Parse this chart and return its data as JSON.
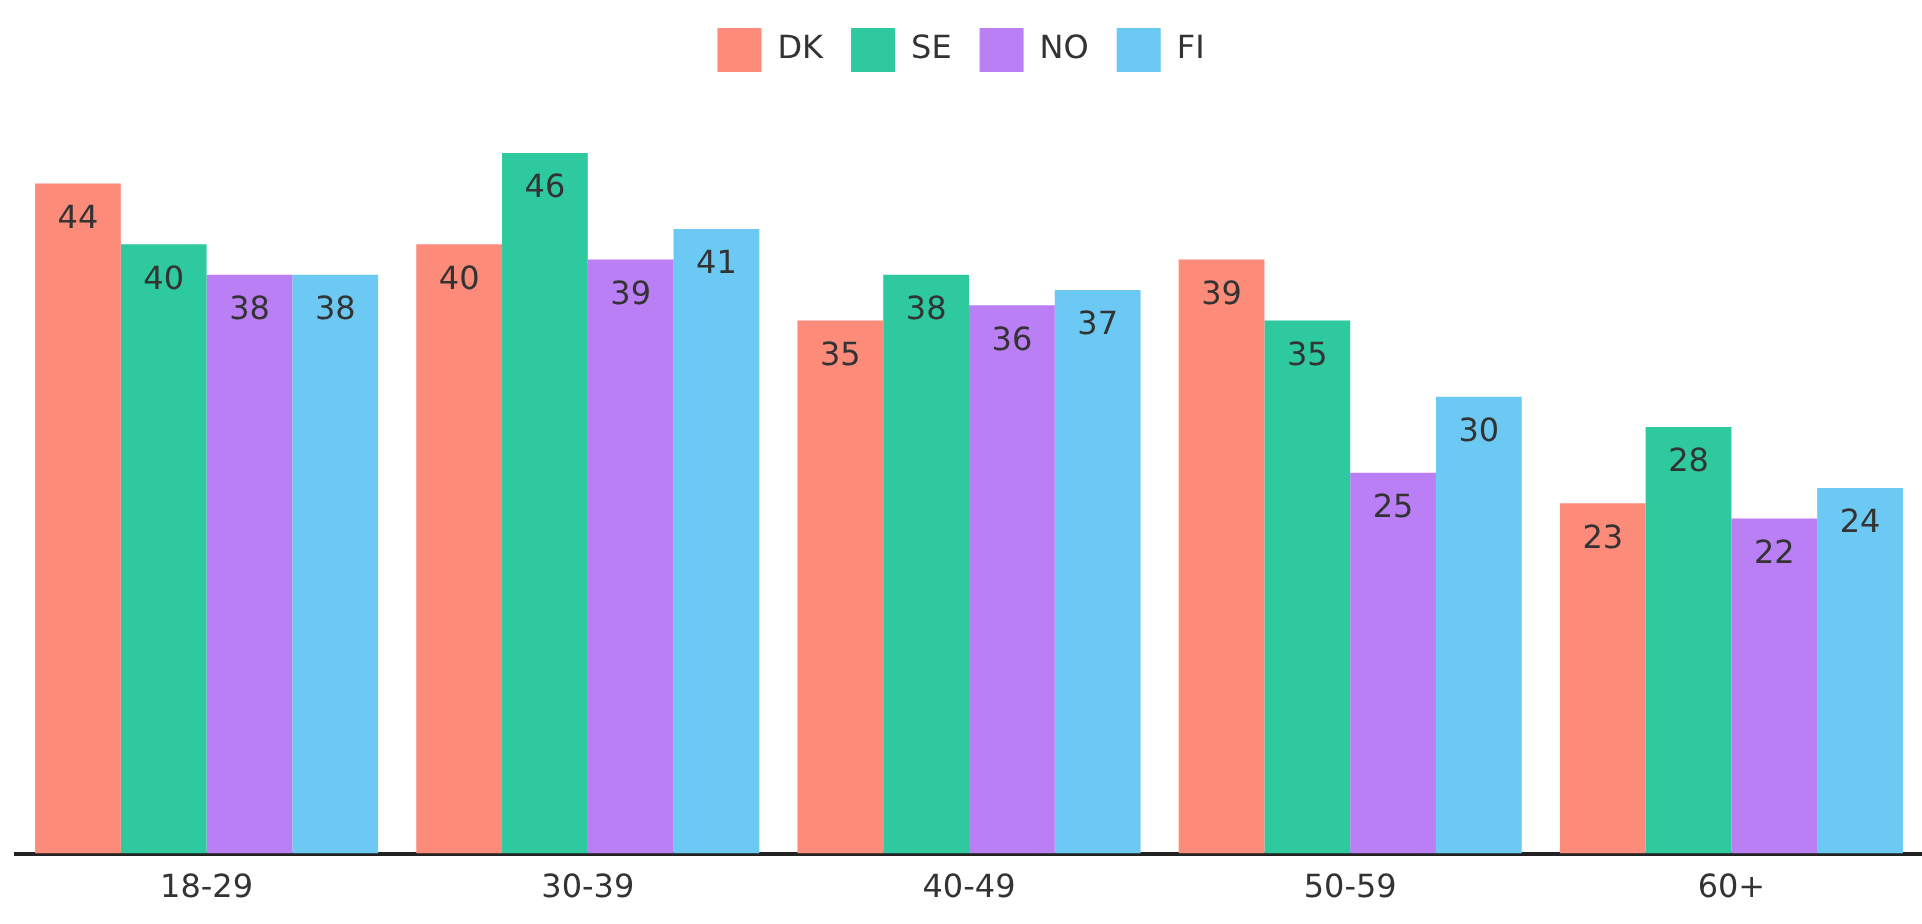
{
  "chart_data": {
    "type": "bar",
    "categories": [
      "18-29",
      "30-39",
      "40-49",
      "50-59",
      "60+"
    ],
    "series": [
      {
        "name": "DK",
        "color": "#fc8b7a",
        "values": [
          44,
          40,
          35,
          39,
          23
        ]
      },
      {
        "name": "SE",
        "color": "#2ec99e",
        "values": [
          40,
          46,
          38,
          35,
          28
        ]
      },
      {
        "name": "NO",
        "color": "#bb7ff5",
        "values": [
          38,
          39,
          36,
          25,
          22
        ]
      },
      {
        "name": "FI",
        "color": "#6bc9f3",
        "values": [
          38,
          41,
          37,
          30,
          24
        ]
      }
    ],
    "data_labels": true,
    "grid": false,
    "legend": "top"
  }
}
